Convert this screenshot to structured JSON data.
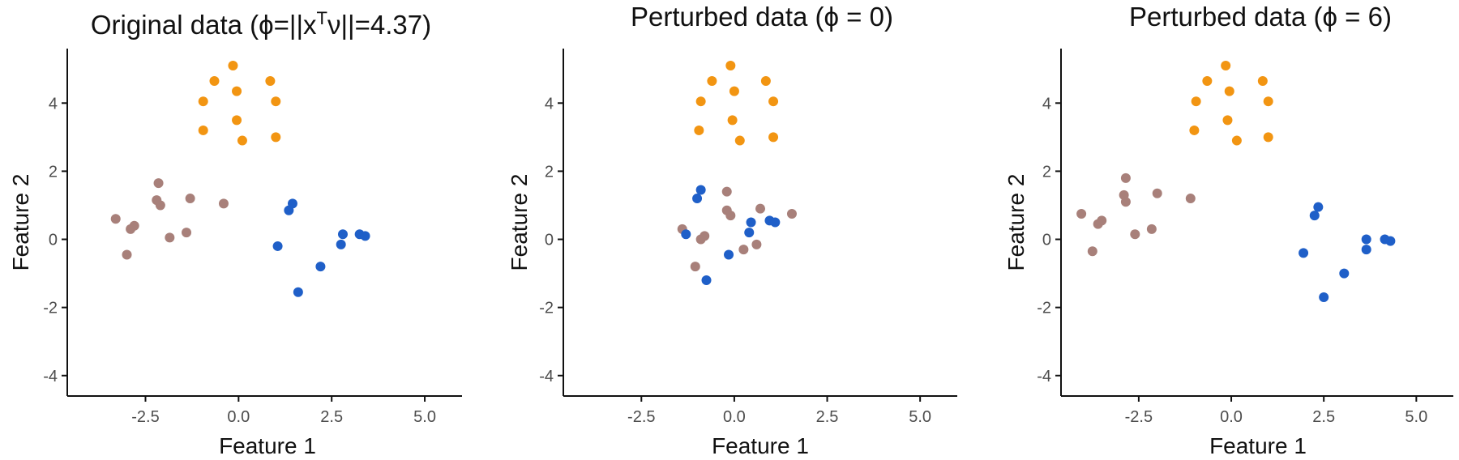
{
  "colors": {
    "cluster_1": "#a8807a",
    "cluster_2": "#1f5fc8",
    "cluster_3": "#f29512",
    "axis": "#111111",
    "tick_text": "#4d4d4d"
  },
  "chart_data": [
    {
      "type": "scatter",
      "title": "Original data (ϕ=||x",
      "title_sup": "T",
      "title_tail": "ν||=4.37)",
      "xlabel": "Feature 1",
      "ylabel": "Feature 2",
      "xlim": [
        -4.6,
        6.0
      ],
      "ylim": [
        -4.6,
        5.6
      ],
      "xticks": [
        -2.5,
        0,
        2.5,
        5
      ],
      "xtick_labels": [
        "-2.5",
        "0.0",
        "2.5",
        "5.0"
      ],
      "yticks": [
        -4,
        -2,
        0,
        2,
        4
      ],
      "ytick_labels": [
        "-4",
        "-2",
        "0",
        "2",
        "4"
      ],
      "series": [
        {
          "name": "cluster_1",
          "color": "#a8807a",
          "points": [
            [
              -3.3,
              0.6
            ],
            [
              -3.0,
              -0.45
            ],
            [
              -2.9,
              0.3
            ],
            [
              -2.8,
              0.4
            ],
            [
              -2.2,
              1.15
            ],
            [
              -2.15,
              1.65
            ],
            [
              -2.1,
              1.0
            ],
            [
              -1.85,
              0.05
            ],
            [
              -1.4,
              0.2
            ],
            [
              -1.3,
              1.2
            ],
            [
              -0.4,
              1.05
            ]
          ]
        },
        {
          "name": "cluster_2",
          "color": "#1f5fc8",
          "points": [
            [
              1.05,
              -0.2
            ],
            [
              1.35,
              0.85
            ],
            [
              1.45,
              1.05
            ],
            [
              1.6,
              -1.55
            ],
            [
              2.2,
              -0.8
            ],
            [
              2.75,
              -0.15
            ],
            [
              2.8,
              0.15
            ],
            [
              3.25,
              0.15
            ],
            [
              3.4,
              0.1
            ]
          ]
        },
        {
          "name": "cluster_3",
          "color": "#f29512",
          "points": [
            [
              -0.95,
              3.2
            ],
            [
              -0.95,
              4.05
            ],
            [
              -0.65,
              4.65
            ],
            [
              -0.15,
              5.1
            ],
            [
              -0.05,
              4.35
            ],
            [
              -0.05,
              3.5
            ],
            [
              0.1,
              2.9
            ],
            [
              0.85,
              4.65
            ],
            [
              1.0,
              4.05
            ],
            [
              1.0,
              3.0
            ]
          ]
        }
      ]
    },
    {
      "type": "scatter",
      "title": "Perturbed data (ϕ = 0)",
      "xlabel": "Feature 1",
      "ylabel": "Feature 2",
      "xlim": [
        -4.6,
        6.0
      ],
      "ylim": [
        -4.6,
        5.6
      ],
      "xticks": [
        -2.5,
        0,
        2.5,
        5
      ],
      "xtick_labels": [
        "-2.5",
        "0.0",
        "2.5",
        "5.0"
      ],
      "yticks": [
        -4,
        -2,
        0,
        2,
        4
      ],
      "ytick_labels": [
        "-4",
        "-2",
        "0",
        "2",
        "4"
      ],
      "series": [
        {
          "name": "cluster_1",
          "color": "#a8807a",
          "points": [
            [
              -1.4,
              0.3
            ],
            [
              -1.05,
              -0.8
            ],
            [
              -0.9,
              0.0
            ],
            [
              -0.8,
              0.1
            ],
            [
              -0.2,
              0.85
            ],
            [
              -0.2,
              1.4
            ],
            [
              -0.1,
              0.7
            ],
            [
              0.25,
              -0.3
            ],
            [
              0.6,
              -0.15
            ],
            [
              0.7,
              0.9
            ],
            [
              1.55,
              0.75
            ]
          ]
        },
        {
          "name": "cluster_2",
          "color": "#1f5fc8",
          "points": [
            [
              -1.3,
              0.15
            ],
            [
              -1.0,
              1.2
            ],
            [
              -0.9,
              1.45
            ],
            [
              -0.75,
              -1.2
            ],
            [
              -0.15,
              -0.45
            ],
            [
              0.4,
              0.2
            ],
            [
              0.45,
              0.5
            ],
            [
              0.95,
              0.55
            ],
            [
              1.1,
              0.5
            ]
          ]
        },
        {
          "name": "cluster_3",
          "color": "#f29512",
          "points": [
            [
              -0.95,
              3.2
            ],
            [
              -0.9,
              4.05
            ],
            [
              -0.6,
              4.65
            ],
            [
              -0.1,
              5.1
            ],
            [
              0.0,
              4.35
            ],
            [
              -0.05,
              3.5
            ],
            [
              0.15,
              2.9
            ],
            [
              0.85,
              4.65
            ],
            [
              1.05,
              4.05
            ],
            [
              1.05,
              3.0
            ]
          ]
        }
      ]
    },
    {
      "type": "scatter",
      "title": "Perturbed data (ϕ = 6)",
      "xlabel": "Feature 1",
      "ylabel": "Feature 2",
      "xlim": [
        -4.6,
        6.0
      ],
      "ylim": [
        -4.6,
        5.6
      ],
      "xticks": [
        -2.5,
        0,
        2.5,
        5
      ],
      "xtick_labels": [
        "-2.5",
        "0.0",
        "2.5",
        "5.0"
      ],
      "yticks": [
        -4,
        -2,
        0,
        2,
        4
      ],
      "ytick_labels": [
        "-4",
        "-2",
        "0",
        "2",
        "4"
      ],
      "series": [
        {
          "name": "cluster_1",
          "color": "#a8807a",
          "points": [
            [
              -4.05,
              0.75
            ],
            [
              -3.75,
              -0.35
            ],
            [
              -3.6,
              0.45
            ],
            [
              -3.5,
              0.55
            ],
            [
              -2.9,
              1.3
            ],
            [
              -2.85,
              1.8
            ],
            [
              -2.85,
              1.1
            ],
            [
              -2.6,
              0.15
            ],
            [
              -2.15,
              0.3
            ],
            [
              -2.0,
              1.35
            ],
            [
              -1.1,
              1.2
            ]
          ]
        },
        {
          "name": "cluster_2",
          "color": "#1f5fc8",
          "points": [
            [
              1.95,
              -0.4
            ],
            [
              2.25,
              0.7
            ],
            [
              2.35,
              0.95
            ],
            [
              2.5,
              -1.7
            ],
            [
              3.05,
              -1.0
            ],
            [
              3.65,
              -0.3
            ],
            [
              3.65,
              0.0
            ],
            [
              4.15,
              0.0
            ],
            [
              4.3,
              -0.05
            ]
          ]
        },
        {
          "name": "cluster_3",
          "color": "#f29512",
          "points": [
            [
              -1.0,
              3.2
            ],
            [
              -0.95,
              4.05
            ],
            [
              -0.65,
              4.65
            ],
            [
              -0.15,
              5.1
            ],
            [
              -0.05,
              4.35
            ],
            [
              -0.1,
              3.5
            ],
            [
              0.15,
              2.9
            ],
            [
              0.85,
              4.65
            ],
            [
              1.0,
              4.05
            ],
            [
              1.0,
              3.0
            ]
          ]
        }
      ]
    }
  ]
}
